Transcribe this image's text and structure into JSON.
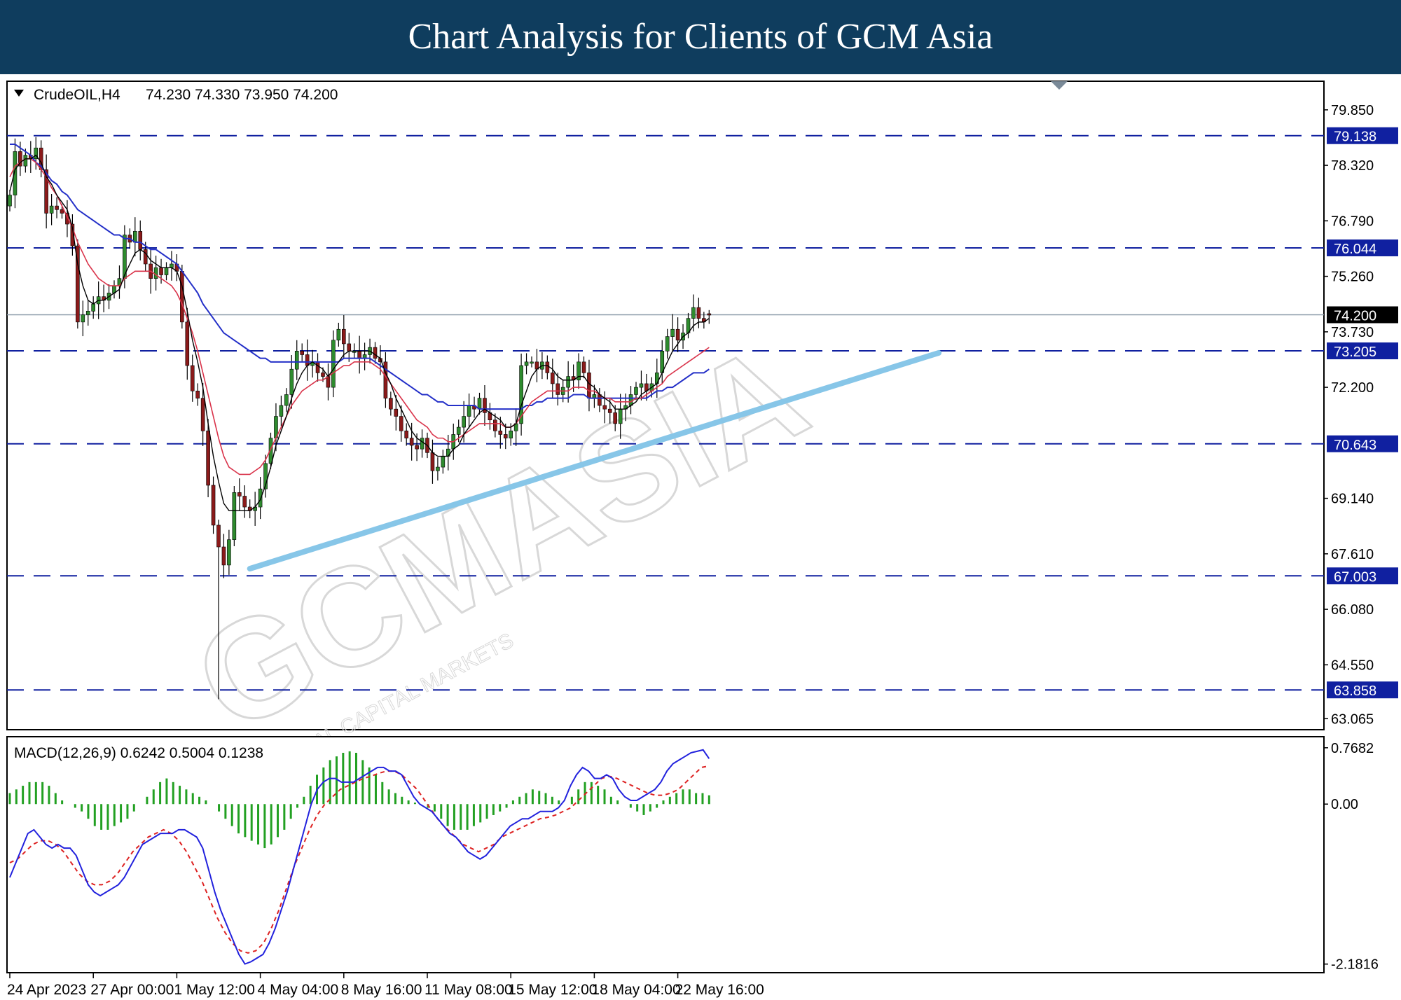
{
  "header": {
    "title": "Chart Analysis for Clients of GCM Asia"
  },
  "colors": {
    "header_bg": "#0f3d5e",
    "bull_candle": "#2e8b2e",
    "bear_candle": "#8b1a1a",
    "ma_fast": "#000000",
    "ma_mid": "#d9334a",
    "ma_slow": "#2430c8",
    "level_line": "#1020a0",
    "trendline": "#87c6e8",
    "macd_line": "#2222dd",
    "signal_line": "#dd2222",
    "histogram": "#22a022"
  },
  "chart_data": [
    {
      "type": "candlestick",
      "symbol_label": "CrudeOIL,H4",
      "ohlc_label": "74.230 74.330 73.950 74.200",
      "ohlc": {
        "open": 74.23,
        "high": 74.33,
        "low": 73.95,
        "close": 74.2
      },
      "ylim": [
        62.8,
        80.6
      ],
      "y_ticks": [
        "79.850",
        "78.320",
        "76.790",
        "75.260",
        "73.730",
        "72.200",
        "69.140",
        "67.610",
        "66.080",
        "64.550",
        "63.065"
      ],
      "x_ticks": [
        "24 Apr 2023",
        "27 Apr 00:00",
        "1 May 12:00",
        "4 May 04:00",
        "8 May 16:00",
        "11 May 08:00",
        "15 May 12:00",
        "18 May 04:00",
        "22 May 16:00"
      ],
      "x_tick_bar_index": [
        0,
        16,
        32,
        48,
        64,
        80,
        96,
        112,
        128
      ],
      "current_price": "74.200",
      "levels": [
        {
          "label": "79.138",
          "value": 79.138
        },
        {
          "label": "76.044",
          "value": 76.044
        },
        {
          "label": "73.205",
          "value": 73.205
        },
        {
          "label": "70.643",
          "value": 70.643
        },
        {
          "label": "67.003",
          "value": 67.003
        },
        {
          "label": "63.858",
          "value": 63.858
        }
      ],
      "trendline": [
        {
          "bar": 46,
          "price": 67.2
        },
        {
          "bar": 178,
          "price": 73.15
        }
      ],
      "closes": [
        77.5,
        78.7,
        78.3,
        78.6,
        78.5,
        78.8,
        78.2,
        77.0,
        77.2,
        77.1,
        77.0,
        76.7,
        76.1,
        74.0,
        74.2,
        74.3,
        74.5,
        74.7,
        74.6,
        74.8,
        75.0,
        75.2,
        76.4,
        76.2,
        76.5,
        76.0,
        75.6,
        75.2,
        75.5,
        75.3,
        75.5,
        75.6,
        75.4,
        74.0,
        72.8,
        72.1,
        71.9,
        71.0,
        69.5,
        68.4,
        67.8,
        67.3,
        68.0,
        69.3,
        69.2,
        68.9,
        68.8,
        68.9,
        69.4,
        70.1,
        70.8,
        71.4,
        71.7,
        72.0,
        72.7,
        73.2,
        73.1,
        72.8,
        72.9,
        72.6,
        72.5,
        72.2,
        73.5,
        73.8,
        73.4,
        73.2,
        73.2,
        73.0,
        73.1,
        73.3,
        73.0,
        72.9,
        71.9,
        71.6,
        71.4,
        71.0,
        70.8,
        70.6,
        70.5,
        70.8,
        70.4,
        69.9,
        70.0,
        70.3,
        70.5,
        70.9,
        71.1,
        71.4,
        71.7,
        71.6,
        71.9,
        71.5,
        71.3,
        71.0,
        70.9,
        70.8,
        71.0,
        71.2,
        72.8,
        72.9,
        72.9,
        72.7,
        72.9,
        72.6,
        72.3,
        72.0,
        72.2,
        72.5,
        72.4,
        72.9,
        72.6,
        71.9,
        72.0,
        71.7,
        71.6,
        71.5,
        71.2,
        71.6,
        71.7,
        72.0,
        72.2,
        72.3,
        72.1,
        72.3,
        72.6,
        73.2,
        73.6,
        73.8,
        73.5,
        73.7,
        74.1,
        74.4,
        74.1,
        74.0,
        74.2
      ],
      "ma_fast": [
        77.6,
        78.2,
        78.4,
        78.5,
        78.5,
        78.6,
        78.4,
        78.0,
        77.8,
        77.5,
        77.3,
        77.1,
        76.6,
        75.6,
        75.0,
        74.6,
        74.5,
        74.6,
        74.6,
        74.7,
        74.8,
        74.9,
        75.3,
        75.6,
        75.9,
        76.0,
        75.9,
        75.7,
        75.6,
        75.5,
        75.5,
        75.5,
        75.4,
        75.0,
        74.3,
        73.5,
        72.9,
        72.2,
        71.2,
        70.3,
        69.6,
        69.0,
        68.8,
        68.8,
        68.8,
        68.8,
        68.8,
        68.9,
        69.1,
        69.5,
        70.0,
        70.6,
        71.0,
        71.4,
        71.9,
        72.3,
        72.6,
        72.8,
        72.9,
        72.8,
        72.7,
        72.5,
        72.7,
        72.9,
        73.1,
        73.2,
        73.2,
        73.2,
        73.2,
        73.2,
        73.1,
        73.0,
        72.6,
        72.3,
        71.9,
        71.6,
        71.3,
        71.0,
        70.8,
        70.7,
        70.6,
        70.4,
        70.3,
        70.3,
        70.3,
        70.5,
        70.6,
        70.9,
        71.1,
        71.3,
        71.5,
        71.6,
        71.5,
        71.4,
        71.3,
        71.1,
        71.1,
        71.2,
        71.7,
        72.1,
        72.5,
        72.7,
        72.8,
        72.8,
        72.7,
        72.5,
        72.4,
        72.4,
        72.4,
        72.5,
        72.5,
        72.3,
        72.2,
        72.0,
        71.9,
        71.8,
        71.6,
        71.6,
        71.6,
        71.7,
        71.8,
        72.0,
        72.1,
        72.2,
        72.3,
        72.6,
        72.9,
        73.2,
        73.4,
        73.6,
        73.7,
        73.9,
        74.0,
        74.0,
        74.1
      ],
      "ma_mid": [
        78.0,
        78.3,
        78.4,
        78.5,
        78.5,
        78.4,
        78.2,
        78.0,
        77.7,
        77.5,
        77.2,
        76.9,
        76.6,
        76.2,
        75.9,
        75.6,
        75.4,
        75.2,
        75.1,
        75.0,
        75.0,
        75.0,
        75.2,
        75.3,
        75.4,
        75.4,
        75.4,
        75.4,
        75.3,
        75.2,
        75.1,
        75.0,
        74.8,
        74.5,
        74.1,
        73.7,
        73.2,
        72.6,
        72.0,
        71.4,
        70.8,
        70.3,
        70.0,
        69.9,
        69.8,
        69.8,
        69.8,
        69.9,
        70.0,
        70.2,
        70.5,
        70.8,
        71.1,
        71.4,
        71.7,
        71.9,
        72.1,
        72.2,
        72.3,
        72.4,
        72.4,
        72.5,
        72.6,
        72.7,
        72.8,
        72.8,
        72.9,
        72.9,
        72.9,
        72.9,
        72.8,
        72.7,
        72.5,
        72.3,
        72.1,
        71.9,
        71.7,
        71.5,
        71.3,
        71.2,
        71.1,
        70.9,
        70.8,
        70.8,
        70.7,
        70.7,
        70.8,
        70.9,
        71.0,
        71.1,
        71.2,
        71.2,
        71.2,
        71.2,
        71.2,
        71.1,
        71.1,
        71.2,
        71.4,
        71.6,
        71.8,
        71.9,
        72.0,
        72.1,
        72.1,
        72.1,
        72.1,
        72.1,
        72.2,
        72.2,
        72.2,
        72.1,
        72.1,
        72.0,
        71.9,
        71.9,
        71.8,
        71.8,
        71.8,
        71.8,
        71.9,
        71.9,
        72.0,
        72.1,
        72.2,
        72.3,
        72.5,
        72.6,
        72.7,
        72.8,
        72.9,
        73.0,
        73.1,
        73.2,
        73.3
      ],
      "ma_slow": [
        78.9,
        78.9,
        78.8,
        78.7,
        78.6,
        78.4,
        78.3,
        78.1,
        77.9,
        77.8,
        77.6,
        77.5,
        77.3,
        77.1,
        77.0,
        76.9,
        76.8,
        76.7,
        76.6,
        76.5,
        76.4,
        76.4,
        76.3,
        76.3,
        76.2,
        76.2,
        76.1,
        76.0,
        76.0,
        75.9,
        75.8,
        75.7,
        75.6,
        75.4,
        75.2,
        75.0,
        74.8,
        74.5,
        74.3,
        74.1,
        73.9,
        73.7,
        73.6,
        73.5,
        73.4,
        73.3,
        73.2,
        73.1,
        73.0,
        73.0,
        72.9,
        72.9,
        72.9,
        72.9,
        72.9,
        72.9,
        72.9,
        72.9,
        72.9,
        72.9,
        72.9,
        72.9,
        72.9,
        72.9,
        73.0,
        73.0,
        73.0,
        73.0,
        73.0,
        73.0,
        72.9,
        72.8,
        72.7,
        72.6,
        72.5,
        72.4,
        72.3,
        72.2,
        72.1,
        72.0,
        72.0,
        71.9,
        71.8,
        71.8,
        71.7,
        71.7,
        71.7,
        71.7,
        71.7,
        71.7,
        71.6,
        71.6,
        71.6,
        71.6,
        71.6,
        71.6,
        71.6,
        71.6,
        71.6,
        71.7,
        71.7,
        71.8,
        71.8,
        71.9,
        71.9,
        71.9,
        71.9,
        71.9,
        72.0,
        72.0,
        72.0,
        71.9,
        71.9,
        71.9,
        71.9,
        71.9,
        71.9,
        71.9,
        71.9,
        71.9,
        71.9,
        71.9,
        71.9,
        72.0,
        72.1,
        72.1,
        72.2,
        72.2,
        72.3,
        72.4,
        72.5,
        72.6,
        72.6,
        72.6,
        72.7
      ]
    },
    {
      "type": "macd",
      "label": "MACD(12,26,9) 0.6242 0.5004 0.1238",
      "ylim": [
        -2.28,
        0.9
      ],
      "y_ticks": [
        "0.7682",
        "0.00",
        "-2.1816"
      ],
      "macd": [
        -1.0,
        -0.8,
        -0.6,
        -0.4,
        -0.35,
        -0.45,
        -0.55,
        -0.6,
        -0.55,
        -0.6,
        -0.6,
        -0.7,
        -0.9,
        -1.1,
        -1.2,
        -1.25,
        -1.2,
        -1.15,
        -1.1,
        -1.0,
        -0.85,
        -0.7,
        -0.55,
        -0.5,
        -0.45,
        -0.4,
        -0.4,
        -0.4,
        -0.35,
        -0.35,
        -0.4,
        -0.45,
        -0.6,
        -0.9,
        -1.2,
        -1.45,
        -1.65,
        -1.85,
        -2.05,
        -2.18,
        -2.15,
        -2.1,
        -2.05,
        -1.9,
        -1.7,
        -1.45,
        -1.2,
        -0.9,
        -0.6,
        -0.3,
        0.0,
        0.2,
        0.3,
        0.35,
        0.35,
        0.3,
        0.3,
        0.3,
        0.35,
        0.4,
        0.45,
        0.5,
        0.5,
        0.45,
        0.45,
        0.4,
        0.25,
        0.1,
        0.0,
        -0.05,
        -0.1,
        -0.2,
        -0.3,
        -0.4,
        -0.45,
        -0.55,
        -0.65,
        -0.7,
        -0.75,
        -0.7,
        -0.6,
        -0.5,
        -0.4,
        -0.3,
        -0.25,
        -0.2,
        -0.2,
        -0.15,
        -0.1,
        -0.1,
        -0.1,
        -0.05,
        0.05,
        0.25,
        0.4,
        0.5,
        0.45,
        0.35,
        0.35,
        0.4,
        0.35,
        0.2,
        0.1,
        0.05,
        0.05,
        0.1,
        0.15,
        0.2,
        0.3,
        0.45,
        0.55,
        0.6,
        0.65,
        0.7,
        0.72,
        0.74,
        0.62
      ],
      "signal": [
        -0.8,
        -0.75,
        -0.65,
        -0.55,
        -0.5,
        -0.5,
        -0.55,
        -0.65,
        -0.8,
        -0.95,
        -1.05,
        -1.1,
        -1.1,
        -1.05,
        -0.95,
        -0.8,
        -0.65,
        -0.55,
        -0.45,
        -0.4,
        -0.35,
        -0.4,
        -0.5,
        -0.65,
        -0.85,
        -1.05,
        -1.3,
        -1.55,
        -1.75,
        -1.9,
        -2.0,
        -2.03,
        -2.0,
        -1.9,
        -1.7,
        -1.45,
        -1.15,
        -0.85,
        -0.6,
        -0.35,
        -0.15,
        0.0,
        0.1,
        0.2,
        0.25,
        0.3,
        0.35,
        0.38,
        0.42,
        0.45,
        0.45,
        0.4,
        0.3,
        0.2,
        0.05,
        -0.1,
        -0.25,
        -0.35,
        -0.45,
        -0.55,
        -0.6,
        -0.65,
        -0.6,
        -0.55,
        -0.45,
        -0.4,
        -0.35,
        -0.3,
        -0.25,
        -0.2,
        -0.18,
        -0.15,
        -0.1,
        -0.05,
        0.05,
        0.15,
        0.25,
        0.35,
        0.38,
        0.35,
        0.3,
        0.25,
        0.2,
        0.15,
        0.12,
        0.12,
        0.15,
        0.2,
        0.3,
        0.4,
        0.5,
        0.52
      ],
      "histogram": [
        0.15,
        0.2,
        0.25,
        0.3,
        0.3,
        0.3,
        0.25,
        0.15,
        0.05,
        0.0,
        -0.05,
        -0.1,
        -0.2,
        -0.3,
        -0.35,
        -0.35,
        -0.3,
        -0.25,
        -0.2,
        -0.1,
        0.0,
        0.1,
        0.2,
        0.3,
        0.35,
        0.3,
        0.25,
        0.2,
        0.15,
        0.1,
        0.05,
        0.0,
        -0.1,
        -0.2,
        -0.3,
        -0.4,
        -0.45,
        -0.5,
        -0.55,
        -0.6,
        -0.55,
        -0.45,
        -0.35,
        -0.2,
        -0.05,
        0.1,
        0.25,
        0.4,
        0.5,
        0.6,
        0.65,
        0.7,
        0.72,
        0.7,
        0.6,
        0.5,
        0.4,
        0.3,
        0.2,
        0.15,
        0.1,
        0.05,
        0.02,
        0.0,
        -0.05,
        -0.1,
        -0.2,
        -0.3,
        -0.35,
        -0.35,
        -0.35,
        -0.3,
        -0.25,
        -0.2,
        -0.15,
        -0.1,
        -0.05,
        0.05,
        0.1,
        0.15,
        0.2,
        0.18,
        0.15,
        0.1,
        0.05,
        0.0,
        0.1,
        0.2,
        0.3,
        0.3,
        0.25,
        0.2,
        0.1,
        0.05,
        0.0,
        -0.05,
        -0.1,
        -0.15,
        -0.1,
        -0.05,
        0.05,
        0.1,
        0.15,
        0.2,
        0.2,
        0.15,
        0.15,
        0.12
      ]
    }
  ],
  "watermark": {
    "brand": "GCMASIA",
    "tagline": "GLOBAL CAPITAL MARKETS"
  }
}
